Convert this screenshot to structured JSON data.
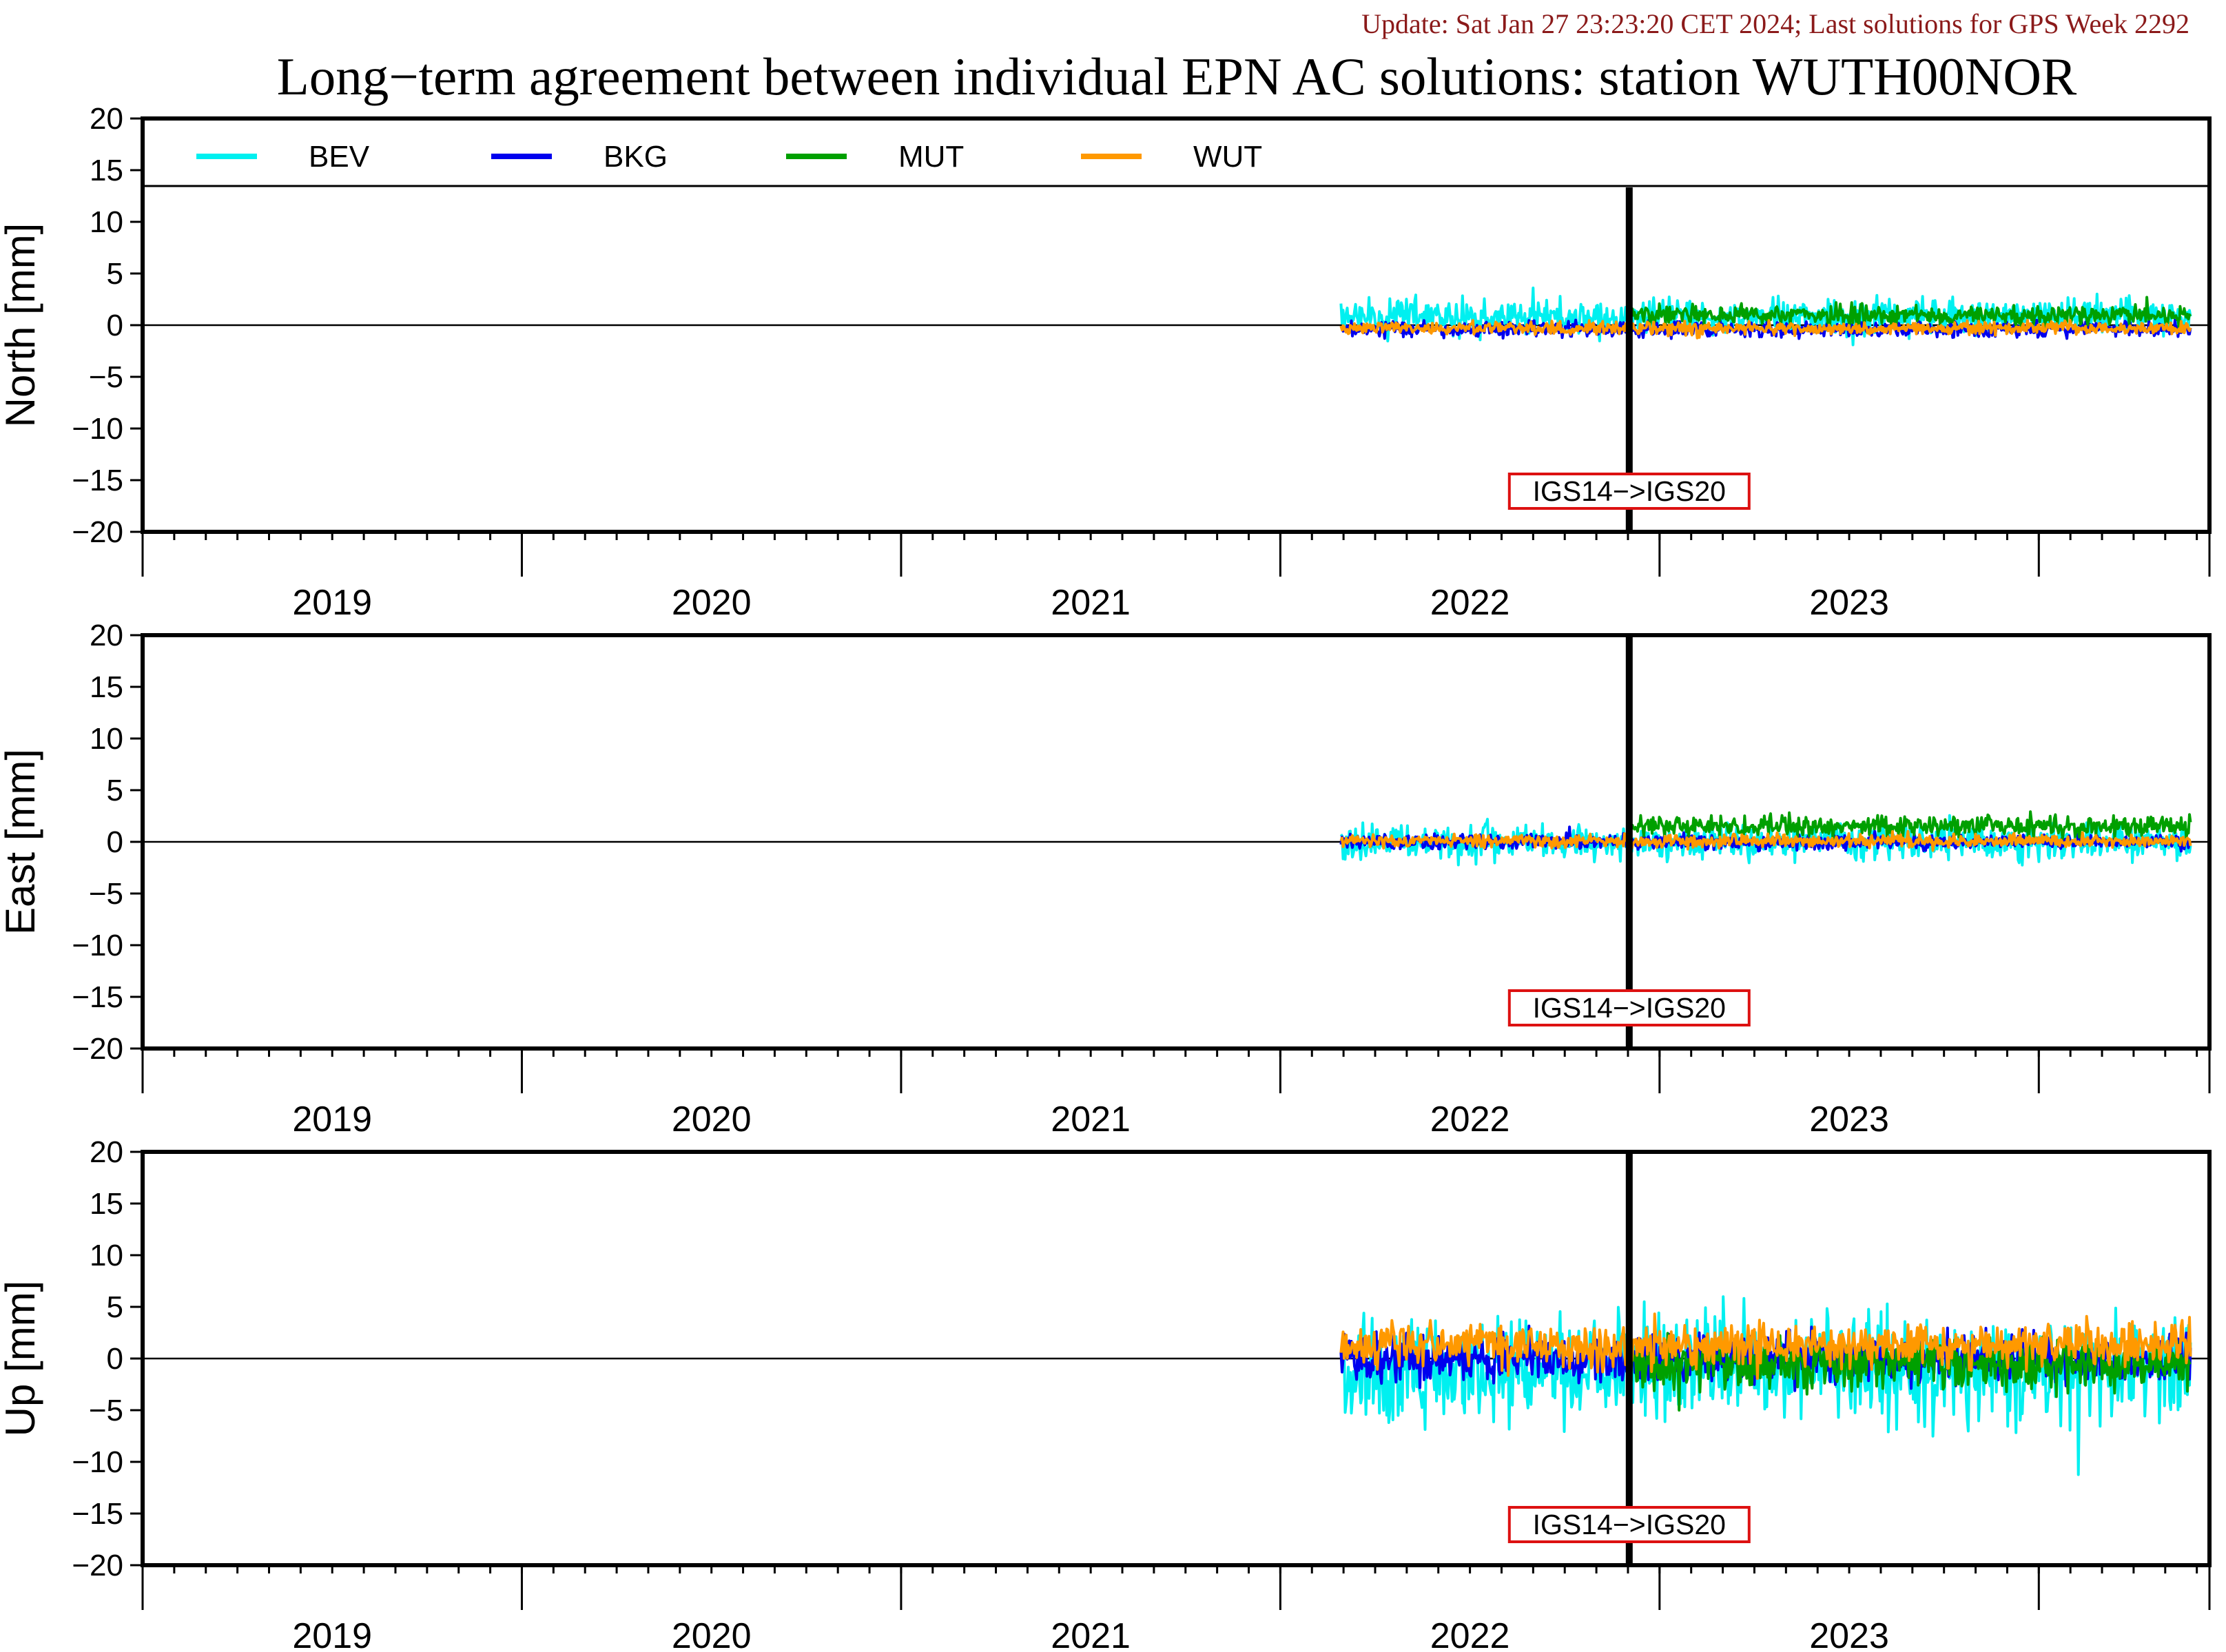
{
  "header": {
    "update_text": "Update: Sat Jan 27 23:23:20 CET 2024; Last solutions for GPS Week 2292",
    "title": "Long−term agreement between individual EPN AC solutions: station WUTH00NOR"
  },
  "colors": {
    "update_text": "#8b1a1a",
    "frame": "#000000",
    "annotation_border": "#dd1111"
  },
  "chart_data": {
    "type": "line",
    "x_axis": {
      "range": [
        2018.5,
        2023.95
      ],
      "year_labels": [
        "2019",
        "2020",
        "2021",
        "2022",
        "2023"
      ],
      "year_boundaries": [
        2018.5,
        2019.5,
        2020.5,
        2021.5,
        2022.5,
        2023.5
      ]
    },
    "y_ticks": [
      "20",
      "15",
      "10",
      "5",
      "0",
      "−5",
      "−10",
      "−15",
      "−20"
    ],
    "ylim": [
      -20,
      20
    ],
    "series_meta": [
      {
        "name": "BEV",
        "color": "#00f0f0"
      },
      {
        "name": "BKG",
        "color": "#0000ee"
      },
      {
        "name": "MUT",
        "color": "#00a000"
      },
      {
        "name": "WUT",
        "color": "#ff9900"
      }
    ],
    "frame_change": {
      "x": 2022.42,
      "label": "IGS14−>IGS20"
    },
    "panels": [
      {
        "ylabel": "North [mm]",
        "has_legend": true,
        "series": [
          {
            "name": "BEV",
            "start": 2021.66,
            "end": 2023.9,
            "mean": 0.8,
            "amplitude": 2.4
          },
          {
            "name": "BKG",
            "start": 2021.66,
            "end": 2023.9,
            "mean": -0.4,
            "amplitude": 1.1
          },
          {
            "name": "MUT",
            "start": 2022.42,
            "end": 2023.9,
            "mean": 1.0,
            "amplitude": 1.3
          },
          {
            "name": "WUT",
            "start": 2021.66,
            "end": 2023.9,
            "mean": -0.3,
            "amplitude": 0.9
          }
        ]
      },
      {
        "ylabel": "East [mm]",
        "has_legend": false,
        "series": [
          {
            "name": "BEV",
            "start": 2021.66,
            "end": 2023.9,
            "mean": 0.0,
            "amplitude": 2.5
          },
          {
            "name": "BKG",
            "start": 2021.66,
            "end": 2023.9,
            "mean": 0.0,
            "amplitude": 1.0
          },
          {
            "name": "MUT",
            "start": 2022.42,
            "end": 2023.9,
            "mean": 1.5,
            "amplitude": 1.4
          },
          {
            "name": "WUT",
            "start": 2021.66,
            "end": 2023.9,
            "mean": 0.1,
            "amplitude": 0.9
          }
        ]
      },
      {
        "ylabel": "Up [mm]",
        "has_legend": false,
        "series": [
          {
            "name": "BEV",
            "start": 2021.66,
            "end": 2023.9,
            "mean": -1.0,
            "amplitude": 7.5
          },
          {
            "name": "BKG",
            "start": 2021.66,
            "end": 2023.9,
            "mean": 0.0,
            "amplitude": 3.5
          },
          {
            "name": "MUT",
            "start": 2022.42,
            "end": 2023.9,
            "mean": -0.5,
            "amplitude": 3.5
          },
          {
            "name": "WUT",
            "start": 2021.66,
            "end": 2023.9,
            "mean": 1.3,
            "amplitude": 3.0
          }
        ]
      }
    ]
  }
}
